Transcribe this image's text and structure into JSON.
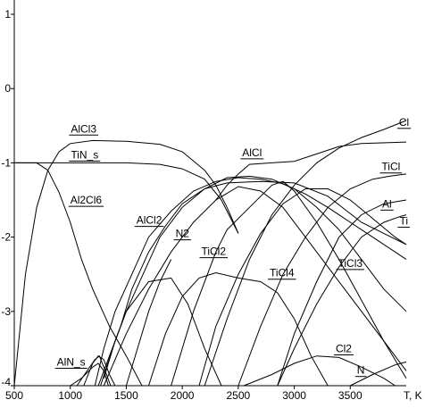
{
  "chart_data": {
    "type": "line",
    "title": "",
    "xlabel": "T, K",
    "ylabel": "",
    "xlim": [
      500,
      4000
    ],
    "ylim": [
      -4,
      1
    ],
    "x_ticks": [
      500,
      1000,
      1500,
      2000,
      2500,
      3000,
      3500
    ],
    "x_tick_labels": [
      "500",
      "1000",
      "1500",
      "2000",
      "2500",
      "3000",
      "3500"
    ],
    "y_ticks": [
      1,
      0,
      -1,
      -2,
      -3,
      -4
    ],
    "y_tick_labels": [
      "1",
      "0",
      "-1",
      "-2",
      "-3",
      "-4"
    ],
    "grid": false,
    "line_color": "#000000",
    "series": [
      {
        "name": "AlCl3",
        "label_at": [
          1005,
          -0.59
        ],
        "points": [
          [
            500,
            -4.0
          ],
          [
            600,
            -2.5
          ],
          [
            700,
            -1.6
          ],
          [
            800,
            -1.1
          ],
          [
            900,
            -0.85
          ],
          [
            1000,
            -0.74
          ],
          [
            1200,
            -0.7
          ],
          [
            1500,
            -0.71
          ],
          [
            1800,
            -0.75
          ],
          [
            2000,
            -0.85
          ],
          [
            2200,
            -1.1
          ],
          [
            2300,
            -1.3
          ],
          [
            2400,
            -1.6
          ],
          [
            2500,
            -1.95
          ]
        ]
      },
      {
        "name": "TiN_s",
        "label_at": [
          1005,
          -0.94
        ],
        "points": [
          [
            500,
            -1.0
          ],
          [
            1000,
            -1.0
          ],
          [
            1500,
            -1.0
          ],
          [
            1800,
            -1.02
          ],
          [
            2000,
            -1.08
          ],
          [
            2200,
            -1.22
          ],
          [
            2350,
            -1.5
          ],
          [
            2450,
            -1.8
          ],
          [
            2500,
            -1.95
          ]
        ]
      },
      {
        "name": "Al2Cl6",
        "label_at": [
          1000,
          -1.55
        ],
        "points": [
          [
            500,
            -1.0
          ],
          [
            700,
            -1.0
          ],
          [
            800,
            -1.1
          ],
          [
            900,
            -1.4
          ],
          [
            1000,
            -1.8
          ],
          [
            1100,
            -2.3
          ],
          [
            1200,
            -2.7
          ],
          [
            1350,
            -3.2
          ],
          [
            1500,
            -3.6
          ],
          [
            1640,
            -4.0
          ]
        ]
      },
      {
        "name": "AlCl",
        "label_at": [
          2535,
          -0.91
        ],
        "points": [
          [
            2300,
            -1.5
          ],
          [
            2400,
            -1.3
          ],
          [
            2500,
            -1.15
          ],
          [
            2600,
            -1.02
          ],
          [
            2800,
            -1.0
          ],
          [
            3000,
            -0.98
          ],
          [
            3200,
            -0.88
          ],
          [
            3400,
            -0.78
          ],
          [
            3600,
            -0.74
          ],
          [
            4000,
            -0.72
          ]
        ]
      },
      {
        "name": "Cl",
        "label_at": [
          3935,
          -0.5
        ],
        "points": [
          [
            2200,
            -4.0
          ],
          [
            2400,
            -3.1
          ],
          [
            2600,
            -2.3
          ],
          [
            2800,
            -1.7
          ],
          [
            3000,
            -1.3
          ],
          [
            3200,
            -1.0
          ],
          [
            3400,
            -0.8
          ],
          [
            3600,
            -0.66
          ],
          [
            3800,
            -0.55
          ],
          [
            4000,
            -0.43
          ]
        ]
      },
      {
        "name": "TiCl",
        "label_at": [
          3780,
          -1.1
        ],
        "points": [
          [
            2500,
            -4.0
          ],
          [
            2700,
            -3.2
          ],
          [
            2900,
            -2.5
          ],
          [
            3100,
            -2.0
          ],
          [
            3300,
            -1.6
          ],
          [
            3500,
            -1.35
          ],
          [
            3700,
            -1.22
          ],
          [
            3850,
            -1.18
          ],
          [
            4000,
            -1.15
          ]
        ]
      },
      {
        "name": "Al",
        "label_at": [
          3785,
          -1.6
        ],
        "points": [
          [
            2850,
            -4.0
          ],
          [
            3000,
            -3.3
          ],
          [
            3200,
            -2.6
          ],
          [
            3400,
            -2.0
          ],
          [
            3600,
            -1.7
          ],
          [
            3800,
            -1.55
          ],
          [
            4000,
            -1.5
          ]
        ]
      },
      {
        "name": "Ti",
        "label_at": [
          3940,
          -1.83
        ],
        "points": [
          [
            2850,
            -4.0
          ],
          [
            3000,
            -3.5
          ],
          [
            3200,
            -2.9
          ],
          [
            3400,
            -2.4
          ],
          [
            3600,
            -2.0
          ],
          [
            3800,
            -1.8
          ],
          [
            3950,
            -1.72
          ],
          [
            4000,
            -1.7
          ]
        ]
      },
      {
        "name": "AlCl2",
        "label_at": [
          1590,
          -1.82
        ],
        "points": [
          [
            1220,
            -4.0
          ],
          [
            1300,
            -3.5
          ],
          [
            1400,
            -3.0
          ],
          [
            1550,
            -2.5
          ],
          [
            1700,
            -2.0
          ],
          [
            1900,
            -1.65
          ],
          [
            2100,
            -1.38
          ],
          [
            2300,
            -1.25
          ],
          [
            2500,
            -1.2
          ],
          [
            2700,
            -1.22
          ],
          [
            2900,
            -1.28
          ],
          [
            3100,
            -1.42
          ],
          [
            3300,
            -1.6
          ],
          [
            3500,
            -1.8
          ],
          [
            3700,
            -2.0
          ],
          [
            3900,
            -2.2
          ],
          [
            4000,
            -2.3
          ]
        ]
      },
      {
        "name": "N2",
        "label_at": [
          1940,
          -2.0
        ],
        "points": [
          [
            1250,
            -4.0
          ],
          [
            1350,
            -3.6
          ],
          [
            1450,
            -3.2
          ],
          [
            1550,
            -2.7
          ],
          [
            1700,
            -2.2
          ],
          [
            1850,
            -1.85
          ],
          [
            2000,
            -1.55
          ],
          [
            2200,
            -1.35
          ],
          [
            2400,
            -1.27
          ],
          [
            2700,
            -1.25
          ],
          [
            3000,
            -1.27
          ],
          [
            3300,
            -1.45
          ],
          [
            3600,
            -1.8
          ],
          [
            4000,
            -2.1
          ]
        ]
      },
      {
        "name": "TiCl2",
        "label_at": [
          2170,
          -2.24
        ],
        "points": [
          [
            1270,
            -4.0
          ],
          [
            1400,
            -3.4
          ],
          [
            1500,
            -3.0
          ],
          [
            1650,
            -2.5
          ],
          [
            1800,
            -2.0
          ],
          [
            2000,
            -1.6
          ],
          [
            2200,
            -1.35
          ],
          [
            2400,
            -1.2
          ],
          [
            2600,
            -1.18
          ],
          [
            2800,
            -1.22
          ],
          [
            3000,
            -1.35
          ],
          [
            3200,
            -1.6
          ],
          [
            3400,
            -1.9
          ],
          [
            3600,
            -2.3
          ],
          [
            3800,
            -2.7
          ],
          [
            4000,
            -3.0
          ]
        ]
      },
      {
        "name": "TiCl3",
        "label_at": [
          3390,
          -2.4
        ],
        "points": [
          [
            1300,
            -4.0
          ],
          [
            1500,
            -3.3
          ],
          [
            1700,
            -2.7
          ],
          [
            1900,
            -2.2
          ],
          [
            2100,
            -1.8
          ],
          [
            2300,
            -1.5
          ],
          [
            2500,
            -1.32
          ],
          [
            2700,
            -1.38
          ],
          [
            2900,
            -1.6
          ],
          [
            3100,
            -2.0
          ],
          [
            3300,
            -2.4
          ],
          [
            3500,
            -2.8
          ],
          [
            3700,
            -3.2
          ],
          [
            3900,
            -3.6
          ],
          [
            4000,
            -3.8
          ]
        ]
      },
      {
        "name": "TiCl4",
        "label_at": [
          2780,
          -2.53
        ],
        "points": [
          [
            1700,
            -4.0
          ],
          [
            1850,
            -3.3
          ],
          [
            2000,
            -2.8
          ],
          [
            2150,
            -2.55
          ],
          [
            2300,
            -2.48
          ],
          [
            2500,
            -2.55
          ],
          [
            2700,
            -2.6
          ],
          [
            2850,
            -2.75
          ],
          [
            3000,
            -3.1
          ],
          [
            3150,
            -3.6
          ],
          [
            3300,
            -4.0
          ]
        ]
      },
      {
        "name": "Cl2",
        "label_at": [
          3370,
          -3.55
        ],
        "points": [
          [
            2550,
            -4.0
          ],
          [
            2800,
            -3.85
          ],
          [
            3000,
            -3.7
          ],
          [
            3200,
            -3.6
          ],
          [
            3400,
            -3.62
          ],
          [
            3600,
            -3.75
          ],
          [
            3800,
            -3.9
          ],
          [
            3900,
            -4.0
          ]
        ]
      },
      {
        "name": "N",
        "label_at": [
          3560,
          -3.84
        ],
        "points": [
          [
            3500,
            -4.0
          ],
          [
            3700,
            -3.85
          ],
          [
            3900,
            -3.72
          ],
          [
            4000,
            -3.68
          ]
        ]
      },
      {
        "name": "AlN_s",
        "label_at": [
          880,
          -3.73
        ],
        "points": [
          [
            1060,
            -4.0
          ],
          [
            1150,
            -3.8
          ],
          [
            1220,
            -3.65
          ],
          [
            1260,
            -3.6
          ],
          [
            1300,
            -3.75
          ],
          [
            1360,
            -4.0
          ]
        ]
      },
      {
        "name": "",
        "label_at": null,
        "points": [
          [
            1120,
            -4.0
          ],
          [
            1200,
            -3.7
          ],
          [
            1250,
            -3.6
          ],
          [
            1300,
            -3.65
          ],
          [
            1350,
            -3.85
          ],
          [
            1400,
            -4.0
          ]
        ]
      },
      {
        "name": "",
        "label_at": null,
        "points": [
          [
            1000,
            -4.0
          ],
          [
            1100,
            -3.9
          ],
          [
            1200,
            -3.75
          ],
          [
            1250,
            -3.7
          ],
          [
            1300,
            -3.8
          ],
          [
            1340,
            -4.0
          ]
        ]
      },
      {
        "name": "",
        "label_at": null,
        "points": [
          [
            1300,
            -3.9
          ],
          [
            1400,
            -3.4
          ],
          [
            1500,
            -3.0
          ],
          [
            1700,
            -2.6
          ],
          [
            1900,
            -2.55
          ],
          [
            2050,
            -2.9
          ],
          [
            2200,
            -3.5
          ],
          [
            2350,
            -4.0
          ]
        ]
      },
      {
        "name": "",
        "label_at": null,
        "points": [
          [
            1500,
            -4.0
          ],
          [
            1600,
            -3.5
          ],
          [
            1700,
            -3.0
          ],
          [
            1800,
            -2.6
          ],
          [
            1900,
            -2.3
          ]
        ]
      },
      {
        "name": "",
        "label_at": null,
        "points": [
          [
            1900,
            -4.0
          ],
          [
            2100,
            -3.0
          ],
          [
            2300,
            -2.2
          ],
          [
            2400,
            -1.9
          ],
          [
            2600,
            -1.6
          ],
          [
            2800,
            -1.3
          ],
          [
            2900,
            -1.25
          ],
          [
            3000,
            -1.38
          ],
          [
            3200,
            -1.8
          ],
          [
            3400,
            -2.3
          ],
          [
            3600,
            -2.85
          ],
          [
            3800,
            -3.4
          ],
          [
            4000,
            -3.9
          ]
        ]
      },
      {
        "name": "",
        "label_at": null,
        "points": [
          [
            2150,
            -4.0
          ],
          [
            2300,
            -3.2
          ],
          [
            2500,
            -2.5
          ],
          [
            2700,
            -1.95
          ],
          [
            2900,
            -1.55
          ],
          [
            3100,
            -1.35
          ],
          [
            3300,
            -1.35
          ],
          [
            3500,
            -1.5
          ],
          [
            3700,
            -1.75
          ],
          [
            3900,
            -2.0
          ],
          [
            4000,
            -2.1
          ]
        ]
      }
    ]
  }
}
